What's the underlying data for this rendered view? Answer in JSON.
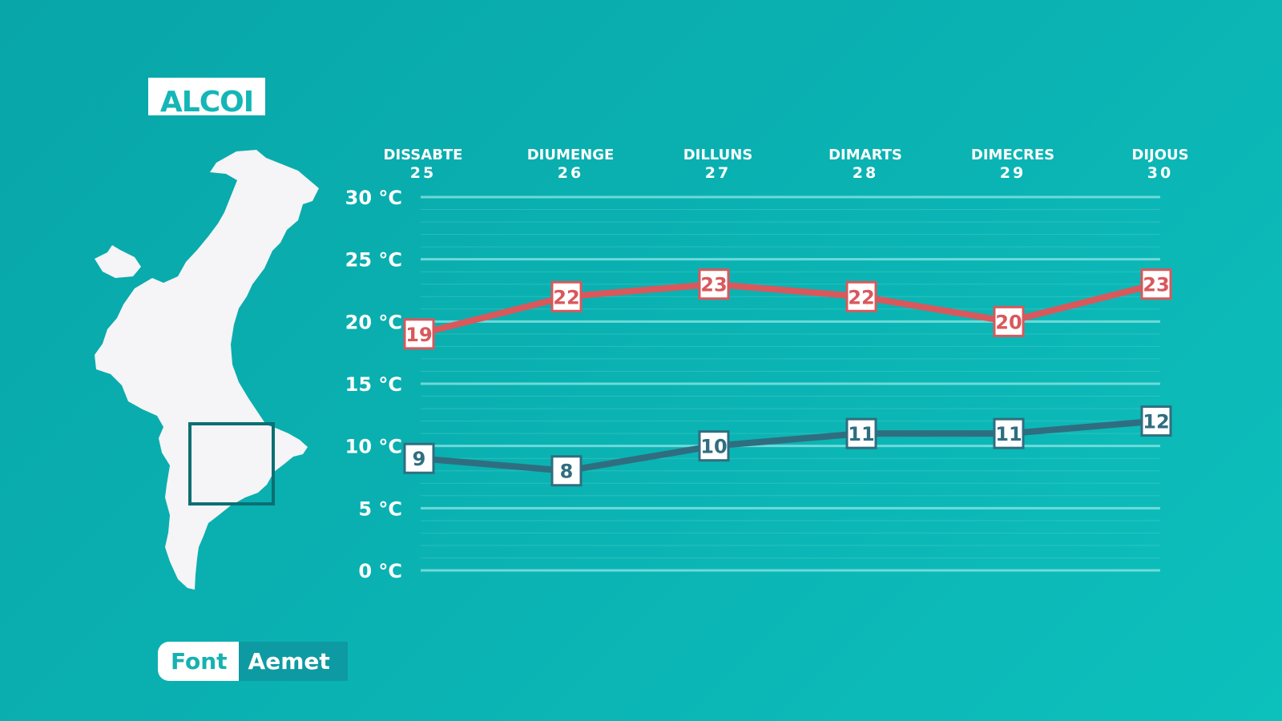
{
  "city": "ALCOI",
  "source": {
    "label": "Font",
    "name": "Aemet"
  },
  "colors": {
    "max_series": "#d9585c",
    "min_series": "#2f6e80",
    "grid": "#7fe0e0",
    "map_fill": "#f5f4f6",
    "map_frame": "#0b6f73"
  },
  "chart_data": {
    "type": "line",
    "categories": [
      {
        "day": "DISSABTE",
        "date": "25"
      },
      {
        "day": "DIUMENGE",
        "date": "26"
      },
      {
        "day": "DILLUNS",
        "date": "27"
      },
      {
        "day": "DIMARTS",
        "date": "28"
      },
      {
        "day": "DIMECRES",
        "date": "29"
      },
      {
        "day": "DIJOUS",
        "date": "30"
      }
    ],
    "yticks": [
      "0 °C",
      "5 °C",
      "10 °C",
      "15 °C",
      "20 °C",
      "25 °C",
      "30 °C"
    ],
    "ylim": [
      0,
      30
    ],
    "grid": true,
    "series": [
      {
        "values": [
          19,
          22,
          23,
          22,
          20,
          23
        ],
        "color": "#d9585c"
      },
      {
        "values": [
          9,
          8,
          10,
          11,
          11,
          12
        ],
        "color": "#2f6e80"
      }
    ]
  }
}
